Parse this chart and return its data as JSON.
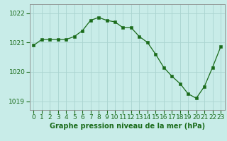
{
  "x": [
    0,
    1,
    2,
    3,
    4,
    5,
    6,
    7,
    8,
    9,
    10,
    11,
    12,
    13,
    14,
    15,
    16,
    17,
    18,
    19,
    20,
    21,
    22,
    23
  ],
  "y": [
    1020.9,
    1021.1,
    1021.1,
    1021.1,
    1021.1,
    1021.2,
    1021.4,
    1021.75,
    1021.85,
    1021.75,
    1021.7,
    1021.5,
    1021.5,
    1021.2,
    1021.0,
    1020.6,
    1020.15,
    1019.85,
    1019.6,
    1019.25,
    1019.1,
    1019.5,
    1020.15,
    1020.85
  ],
  "bg_color": "#c8ece8",
  "line_color": "#1a6b1a",
  "marker_color": "#1a6b1a",
  "grid_color": "#aad4d0",
  "axis_color": "#888888",
  "title": "Graphe pression niveau de la mer (hPa)",
  "ylim_min": 1018.7,
  "ylim_max": 1022.3,
  "yticks": [
    1019,
    1020,
    1021,
    1022
  ],
  "xlim_min": -0.5,
  "xlim_max": 23.5,
  "title_fontsize": 7.0,
  "tick_fontsize": 6.5
}
